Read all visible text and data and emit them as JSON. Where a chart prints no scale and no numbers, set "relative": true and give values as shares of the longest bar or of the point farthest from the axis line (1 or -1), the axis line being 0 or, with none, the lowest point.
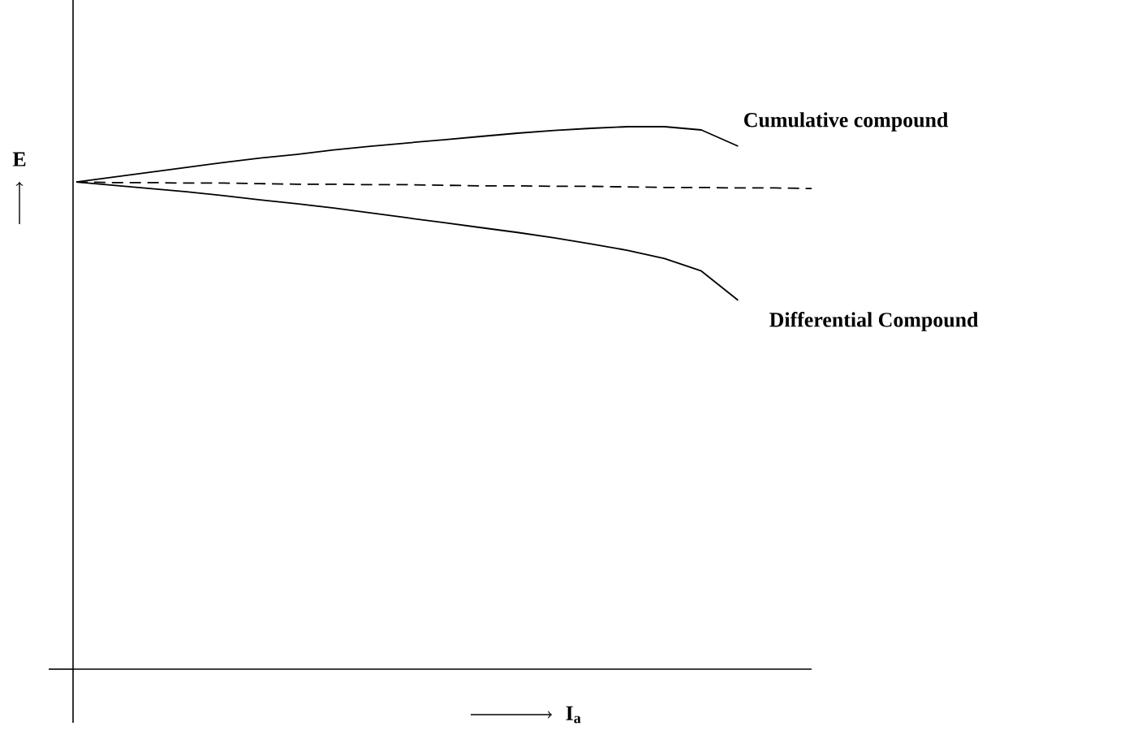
{
  "chart_data": {
    "type": "line",
    "relative": true,
    "xlabel": "I$_{a}$",
    "ylabel": "E",
    "categories": [
      null,
      null,
      null,
      null,
      null,
      null,
      null,
      null,
      null,
      null,
      null,
      null,
      null,
      null,
      null,
      null,
      null,
      null,
      null,
      null,
      null
    ],
    "series": [
      {
        "name": "Cumulative compound",
        "color": "#000000",
        "line_style": "solid",
        "values": [
          0.898,
          0.907,
          0.916,
          0.925,
          0.934,
          0.942,
          0.949,
          0.957,
          0.964,
          0.97,
          0.976,
          0.982,
          0.988,
          0.993,
          0.997,
          1,
          1,
          0.994,
          0.964,
          null,
          null
        ]
      },
      {
        "color": "#000000",
        "line_style": "dashed",
        "values": [
          0.898,
          0.897,
          0.897,
          0.896,
          0.896,
          0.895,
          0.894,
          0.894,
          0.893,
          0.893,
          0.892,
          0.891,
          0.891,
          0.89,
          0.89,
          0.889,
          0.888,
          0.888,
          0.887,
          0.887,
          0.886
        ]
      },
      {
        "name": "Differential Compound",
        "color": "#000000",
        "line_style": "solid",
        "values": [
          0.898,
          0.892,
          0.886,
          0.88,
          0.873,
          0.865,
          0.858,
          0.85,
          0.841,
          0.832,
          0.823,
          0.814,
          0.805,
          0.795,
          0.784,
          0.772,
          0.757,
          0.734,
          0.68,
          null,
          null
        ]
      }
    ]
  }
}
